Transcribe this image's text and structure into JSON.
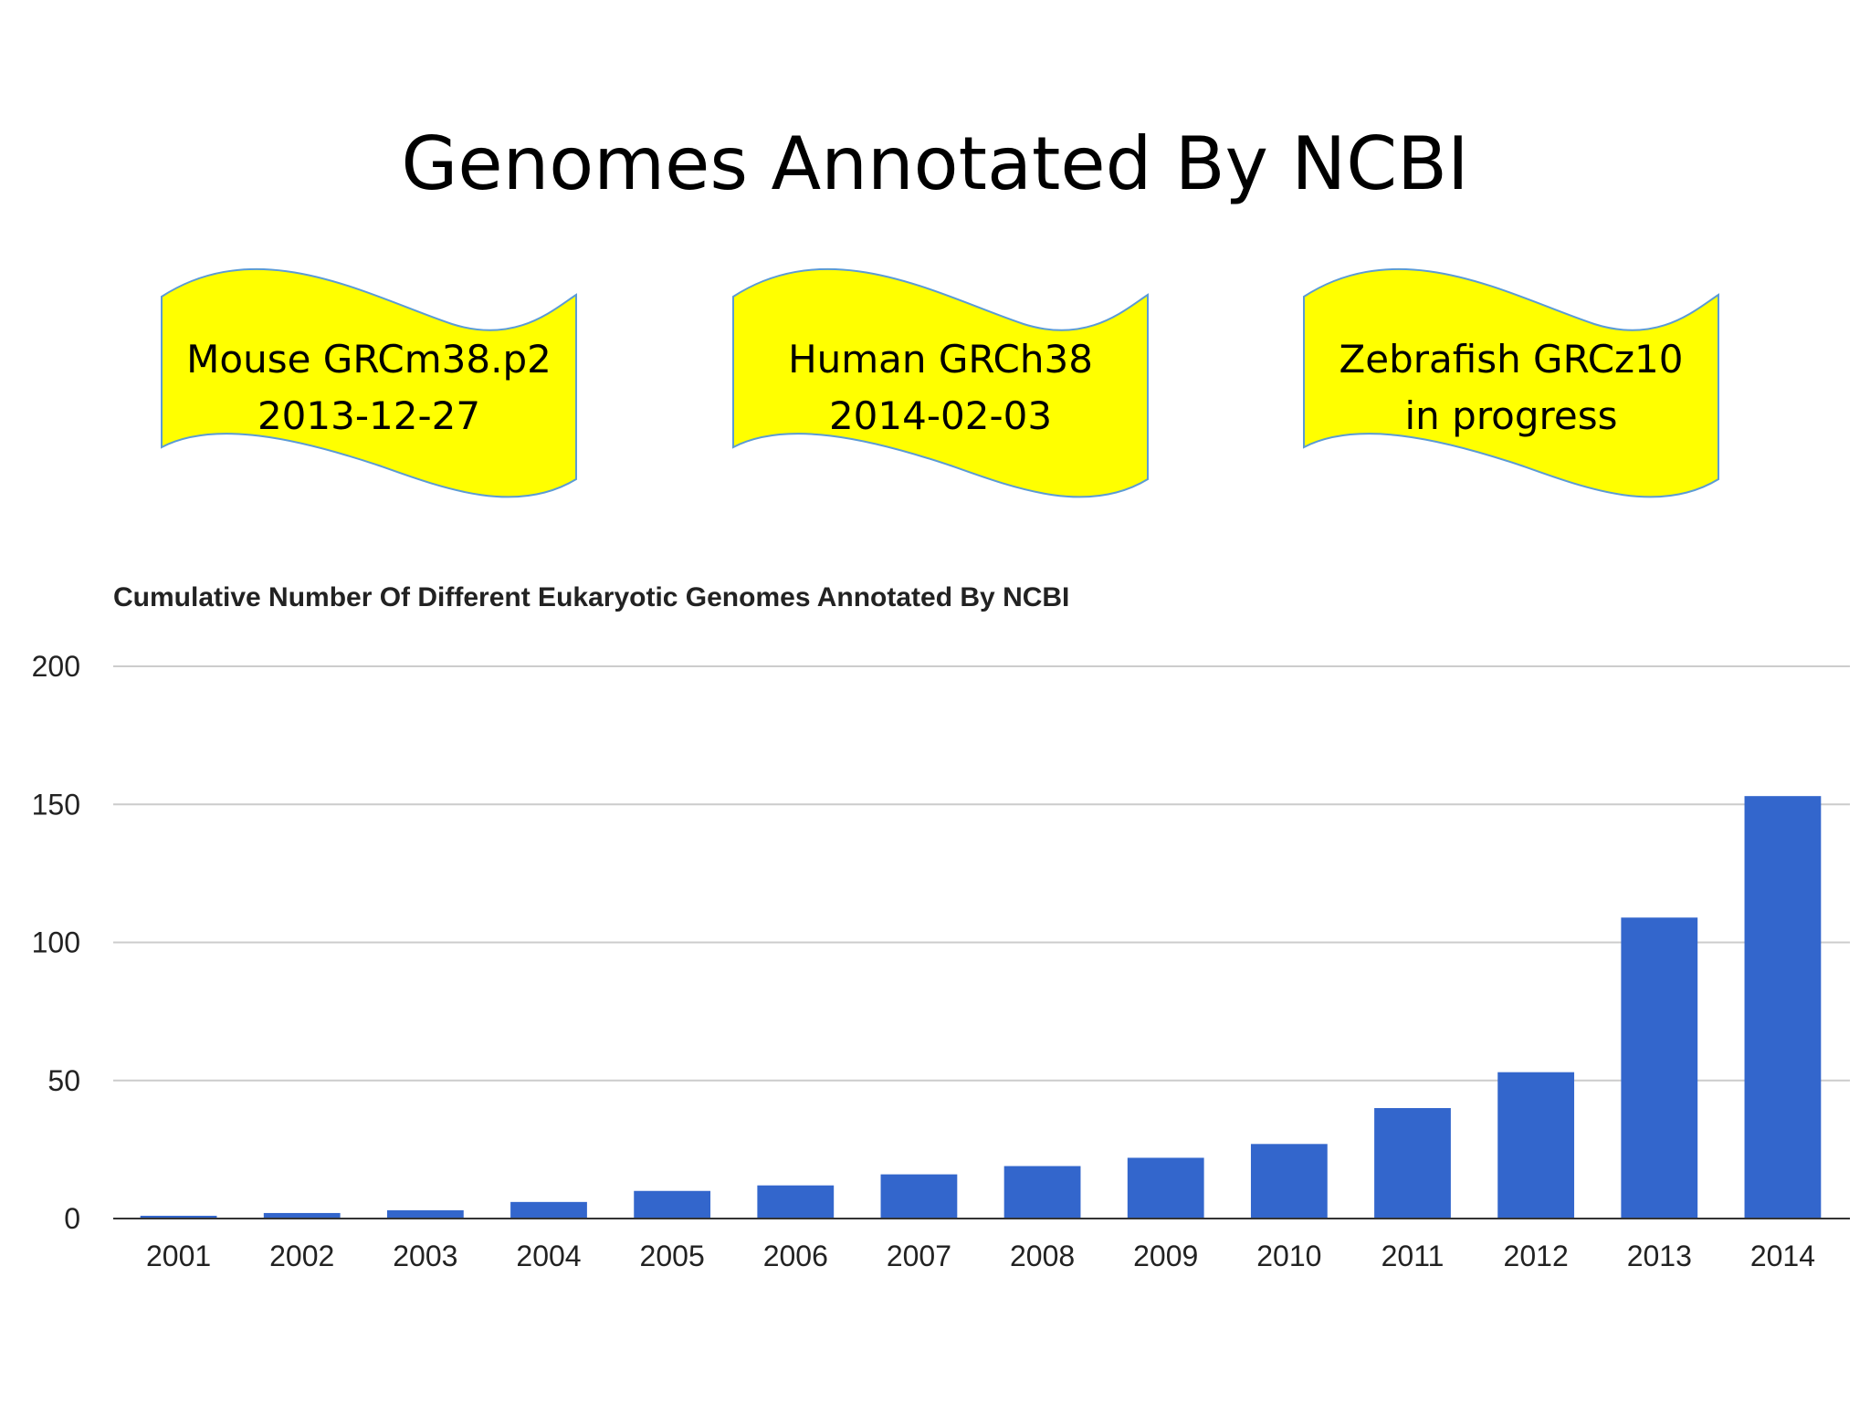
{
  "slide": {
    "title": "Genomes Annotated By NCBI"
  },
  "banners": [
    {
      "line1": "Mouse GRCm38.p2",
      "line2": "2013-12-27"
    },
    {
      "line1": "Human GRCh38",
      "line2": "2014-02-03"
    },
    {
      "line1": "Zebrafish GRCz10",
      "line2": "in progress"
    }
  ],
  "colors": {
    "banner_fill": "#ffff00",
    "banner_stroke": "#5b9bd5",
    "bar": "#3366cc",
    "grid": "#cccccc",
    "axis": "#333333"
  },
  "chart_data": {
    "type": "bar",
    "title": "Cumulative Number Of Different Eukaryotic Genomes Annotated By NCBI",
    "categories": [
      "2001",
      "2002",
      "2003",
      "2004",
      "2005",
      "2006",
      "2007",
      "2008",
      "2009",
      "2010",
      "2011",
      "2012",
      "2013",
      "2014"
    ],
    "values": [
      1,
      2,
      3,
      6,
      10,
      12,
      16,
      19,
      22,
      27,
      40,
      53,
      109,
      153
    ],
    "yticks": [
      0,
      50,
      100,
      150,
      200
    ],
    "ylim": [
      0,
      200
    ],
    "grid": true,
    "legend": "none"
  }
}
